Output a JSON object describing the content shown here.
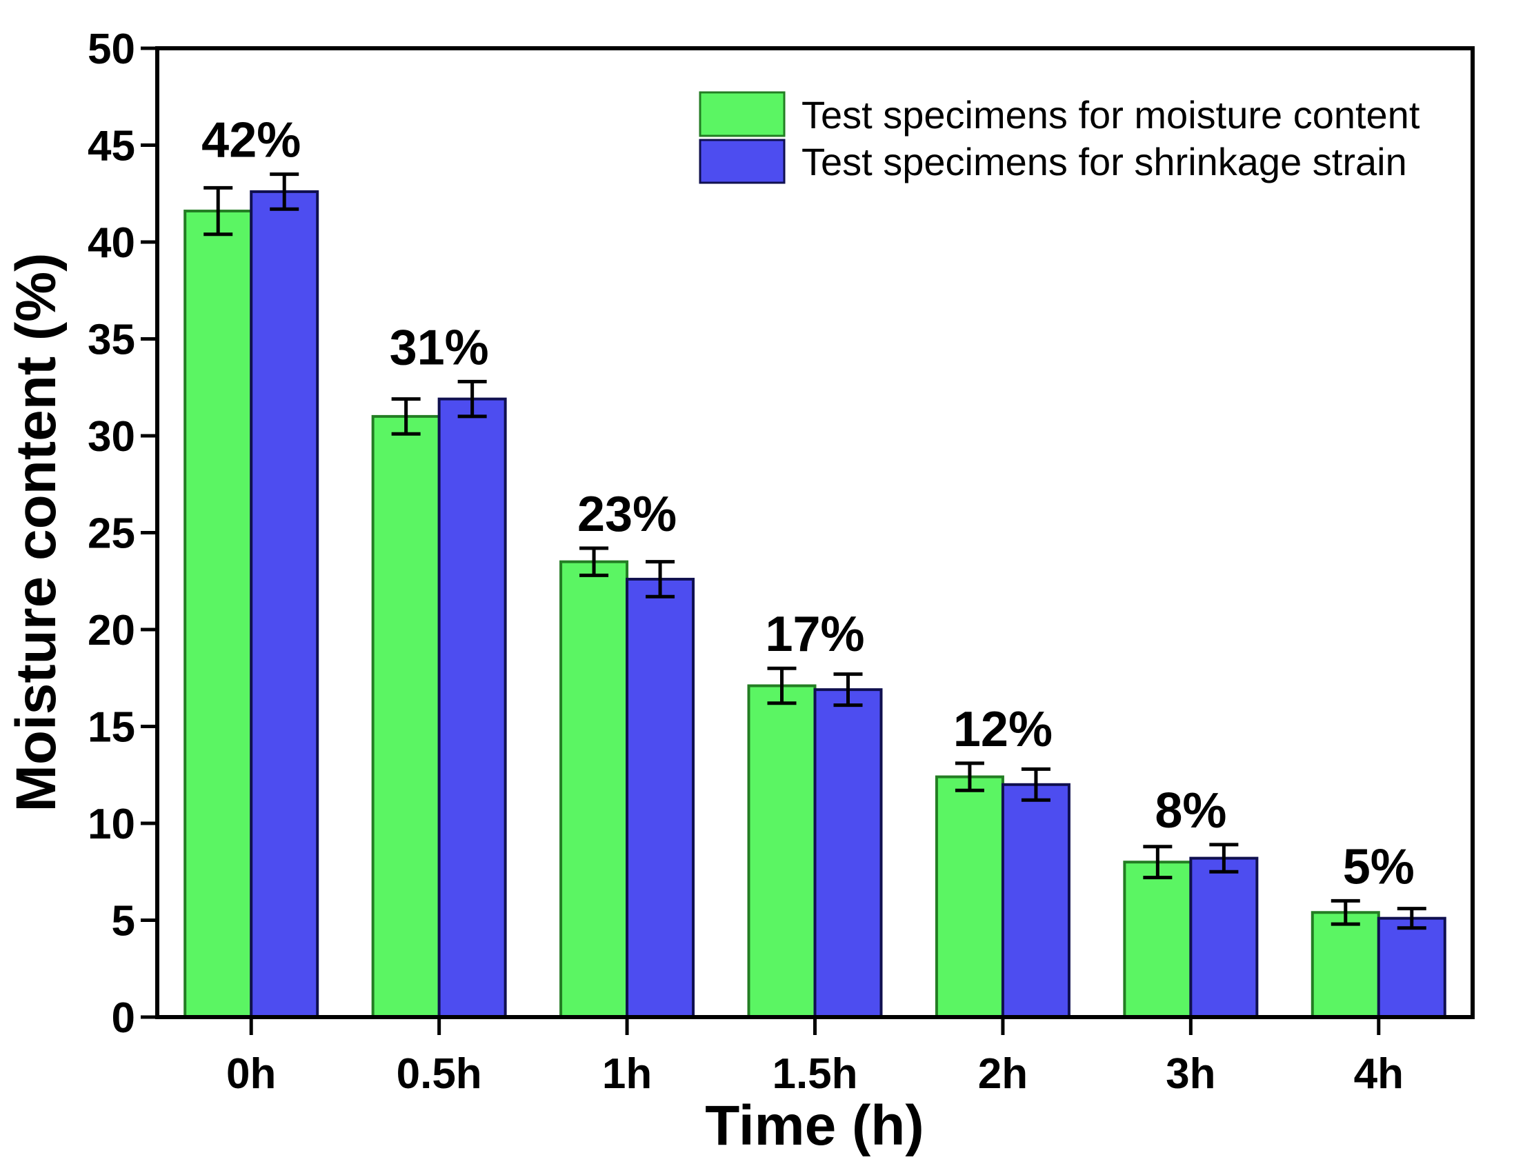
{
  "chart_data": {
    "type": "bar",
    "title": "",
    "xlabel": "Time (h)",
    "ylabel": "Moisture content (%)",
    "categories": [
      "0h",
      "0.5h",
      "1h",
      "1.5h",
      "2h",
      "3h",
      "4h"
    ],
    "series": [
      {
        "name": "Test specimens for moisture content",
        "color": "#5bf563",
        "edge_color": "#237d23",
        "values": [
          41.6,
          31.0,
          23.5,
          17.1,
          12.4,
          8.0,
          5.4
        ],
        "errors": [
          1.2,
          0.9,
          0.7,
          0.9,
          0.7,
          0.8,
          0.6
        ]
      },
      {
        "name": "Test specimens for shrinkage strain",
        "color": "#4d4df0",
        "edge_color": "#10104f",
        "values": [
          42.6,
          31.9,
          22.6,
          16.9,
          12.0,
          8.2,
          5.1
        ],
        "errors": [
          0.9,
          0.9,
          0.9,
          0.8,
          0.8,
          0.7,
          0.5
        ]
      }
    ],
    "bar_labels": [
      "42%",
      "31%",
      "23%",
      "17%",
      "12%",
      "8%",
      "5%"
    ],
    "ylim": [
      0,
      50
    ],
    "yticks": [
      "0",
      "5",
      "10",
      "15",
      "20",
      "25",
      "30",
      "35",
      "40",
      "45",
      "50"
    ],
    "grid": false,
    "legend_position": "top-right",
    "error_bar_color": "#000000",
    "axis_color": "#000000",
    "background": "#ffffff"
  }
}
